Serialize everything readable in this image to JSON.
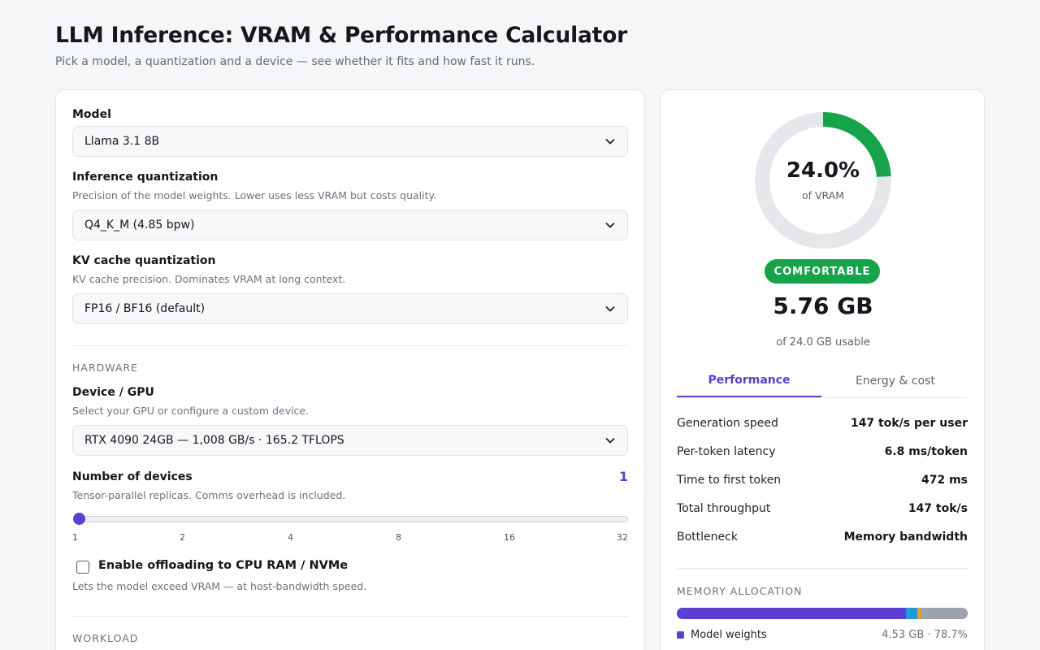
{
  "header": {
    "title": "LLM Inference: VRAM & Performance Calculator",
    "subtitle": "Pick a model, a quantization and a device — see whether it fits and how fast it runs."
  },
  "config": {
    "model": {
      "label": "Model",
      "value": "Llama 3.1 8B"
    },
    "inference_quant": {
      "label": "Inference quantization",
      "help": "Precision of the model weights. Lower uses less VRAM but costs quality.",
      "value": "Q4_K_M (4.85 bpw)"
    },
    "kv_quant": {
      "label": "KV cache quantization",
      "help": "KV cache precision. Dominates VRAM at long context.",
      "value": "FP16 / BF16 (default)"
    },
    "hardware_section": "HARDWARE",
    "device": {
      "label": "Device / GPU",
      "help": "Select your GPU or configure a custom device.",
      "value": "RTX 4090 24GB — 1,008 GB/s · 165.2 TFLOPS"
    },
    "num_devices": {
      "label": "Number of devices",
      "help": "Tensor-parallel replicas. Comms overhead is included.",
      "value": "1",
      "ticks": [
        "1",
        "2",
        "4",
        "8",
        "16",
        "32"
      ]
    },
    "offload": {
      "label": "Enable offloading to CPU RAM / NVMe",
      "help": "Lets the model exceed VRAM — at host-bandwidth speed.",
      "checked": false
    },
    "workload_section": "WORKLOAD"
  },
  "result": {
    "percent": "24.0%",
    "percent_value": 24.0,
    "percent_sub": "of VRAM",
    "status": "COMFORTABLE",
    "status_color": "#17a34a",
    "used": "5.76 GB",
    "usable": "of 24.0 GB usable",
    "tabs": [
      "Performance",
      "Energy & cost"
    ],
    "metrics": [
      {
        "label": "Generation speed",
        "value": "147 tok/s per user"
      },
      {
        "label": "Per-token latency",
        "value": "6.8 ms/token"
      },
      {
        "label": "Time to first token",
        "value": "472 ms"
      },
      {
        "label": "Total throughput",
        "value": "147 tok/s"
      },
      {
        "label": "Bottleneck",
        "value": "Memory bandwidth"
      }
    ],
    "memory_section": "MEMORY ALLOCATION",
    "memory_segments": [
      {
        "name": "Model weights",
        "fraction": 0.787,
        "color": "#5a3fd0"
      },
      {
        "name": "segment-2",
        "fraction": 0.04,
        "color": "#1e9bd7"
      },
      {
        "name": "segment-3",
        "fraction": 0.01,
        "color": "#f0a020"
      },
      {
        "name": "segment-4",
        "fraction": 0.163,
        "color": "#9ca3af"
      }
    ],
    "legend": [
      {
        "label": "Model weights",
        "value": "4.53 GB · 78.7%",
        "color": "#5a3fd0"
      }
    ]
  },
  "colors": {
    "accent": "#5a3fd0",
    "gauge_track": "#e5e7eb",
    "success": "#17a34a"
  }
}
